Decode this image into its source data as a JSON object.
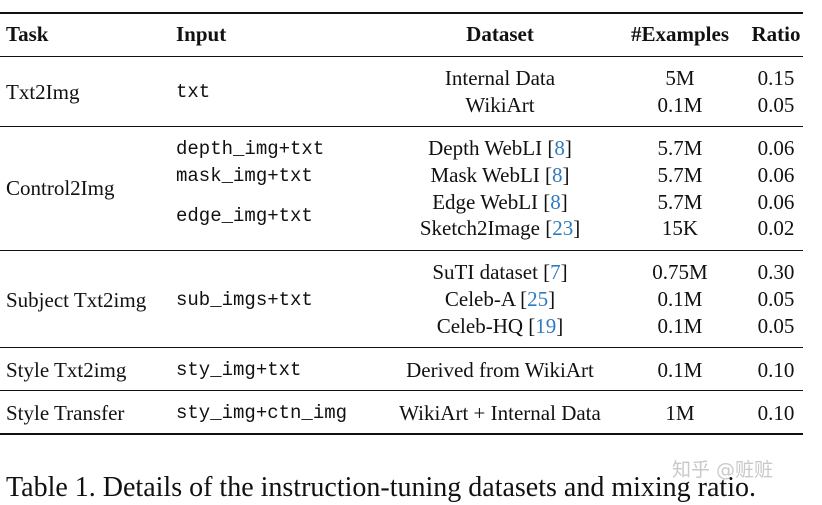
{
  "table": {
    "headers": {
      "task": "Task",
      "input": "Input",
      "dataset": "Dataset",
      "examples": "#Examples",
      "ratio": "Ratio"
    },
    "groups": [
      {
        "task": "Txt2Img",
        "input": [
          "txt"
        ],
        "rows": [
          {
            "dataset": "Internal Data",
            "cite": "",
            "examples": "5M",
            "ratio": "0.15"
          },
          {
            "dataset": "WikiArt",
            "cite": "",
            "examples": "0.1M",
            "ratio": "0.05"
          }
        ]
      },
      {
        "task": "Control2Img",
        "input": [
          "depth_img+txt",
          "mask_img+txt",
          "edge_img+txt"
        ],
        "rows": [
          {
            "dataset": "Depth WebLI ",
            "cite": "8",
            "examples": "5.7M",
            "ratio": "0.06"
          },
          {
            "dataset": "Mask WebLI ",
            "cite": "8",
            "examples": "5.7M",
            "ratio": "0.06"
          },
          {
            "dataset": "Edge WebLI ",
            "cite": "8",
            "examples": "5.7M",
            "ratio": "0.06"
          },
          {
            "dataset": "Sketch2Image ",
            "cite": "23",
            "examples": "15K",
            "ratio": "0.02"
          }
        ]
      },
      {
        "task": "Subject Txt2img",
        "input": [
          "sub_imgs+txt"
        ],
        "rows": [
          {
            "dataset": "SuTI dataset ",
            "cite": "7",
            "examples": "0.75M",
            "ratio": "0.30"
          },
          {
            "dataset": "Celeb-A ",
            "cite": "25",
            "examples": "0.1M",
            "ratio": "0.05"
          },
          {
            "dataset": "Celeb-HQ ",
            "cite": "19",
            "examples": "0.1M",
            "ratio": "0.05"
          }
        ]
      },
      {
        "task": "Style Txt2img",
        "input": [
          "sty_img+txt"
        ],
        "rows": [
          {
            "dataset": "Derived from WikiArt",
            "cite": "",
            "examples": "0.1M",
            "ratio": "0.10"
          }
        ]
      },
      {
        "task": "Style Transfer",
        "input": [
          "sty_img+ctn_img"
        ],
        "rows": [
          {
            "dataset": "WikiArt + Internal Data",
            "cite": "",
            "examples": "1M",
            "ratio": "0.10"
          }
        ]
      }
    ]
  },
  "caption": "Table 1. Details of the instruction-tuning datasets and mixing ratio.",
  "watermark": "知乎 @赃赃"
}
